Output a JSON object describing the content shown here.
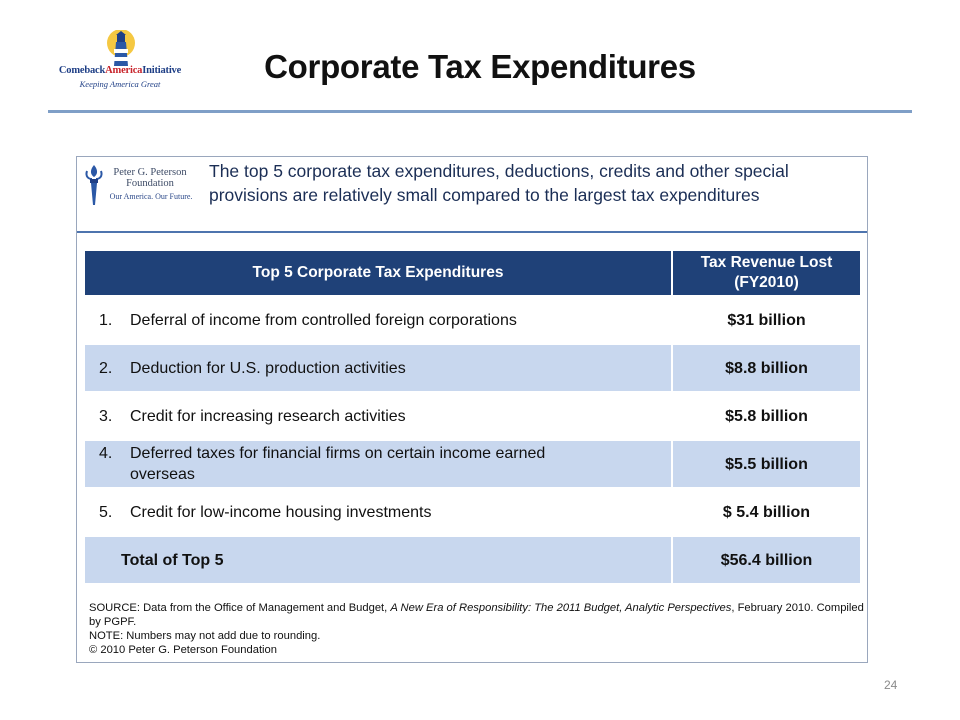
{
  "header": {
    "logo_name_part1": "Comeback",
    "logo_name_part2": "America",
    "logo_name_part3": "Initiative",
    "logo_tagline": "Keeping America Great",
    "title": "Corporate Tax Expenditures"
  },
  "banner": {
    "org_name": "Peter G. Peterson Foundation",
    "org_tagline": "Our America. Our Future.",
    "statement": "The top 5 corporate tax expenditures, deductions, credits and other special provisions are relatively small compared to the largest tax expenditures"
  },
  "table": {
    "col1_header": "Top 5 Corporate Tax Expenditures",
    "col2_header_line1": "Tax Revenue Lost",
    "col2_header_line2": "(FY2010)",
    "rows": [
      {
        "num": "1.",
        "label": "Deferral of income from controlled foreign corporations",
        "amount": "$31 billion"
      },
      {
        "num": "2.",
        "label": "Deduction for U.S. production activities",
        "amount": "$8.8 billion"
      },
      {
        "num": "3.",
        "label": "Credit for increasing research activities",
        "amount": "$5.8 billion"
      },
      {
        "num": "4.",
        "label_line1": "Deferred taxes for financial firms on certain income earned",
        "label_line2": "overseas",
        "amount": "$5.5 billion"
      },
      {
        "num": "5.",
        "label": "Credit for low-income housing investments",
        "amount": "$ 5.4 billion"
      }
    ],
    "total_label": "Total of Top 5",
    "total_amount": "$56.4 billion"
  },
  "source": {
    "prefix": "SOURCE: Data from the Office of Management and Budget, ",
    "publication": "A New Era of Responsibility: The 2011 Budget, Analytic Perspectives",
    "suffix": ", February 2010. Compiled by PGPF.",
    "note": "NOTE: Numbers may not add due to rounding.",
    "copyright": "© 2010 Peter G. Peterson Foundation"
  },
  "footer": {
    "page_number": "24"
  },
  "colors": {
    "header_fill": "#1f4178",
    "alt_row_fill": "#c8d7ee",
    "total_label": "#3d6cb3",
    "rule": "#7f9fc7"
  }
}
